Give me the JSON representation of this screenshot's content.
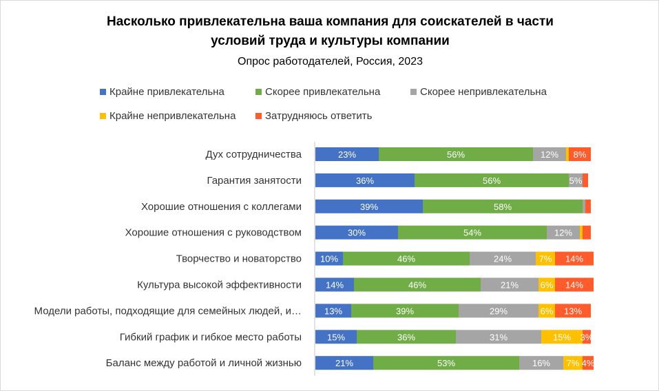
{
  "chart_data": {
    "type": "bar",
    "orientation": "horizontal",
    "stacked": true,
    "title": "Насколько привлекательна ваша компания для соискателей в части условий труда и культуры компании",
    "title_lines": [
      "Насколько привлекательна ваша компания для соискателей в части",
      "условий труда и культуры компании"
    ],
    "subtitle": "Опрос работодателей, Россия, 2023",
    "xlim": [
      0,
      100
    ],
    "grid": false,
    "legend_position": "top",
    "categories": [
      "Дух сотрудничества",
      "Гарантия занятости",
      "Хорошие отношения с коллегами",
      "Хорошие отношения с руководством",
      "Творчество и новаторство",
      "Культура высокой эффективности",
      "Модели работы, подходящие для семейных людей, и…",
      "Гибкий график и гибкое место работы",
      "Баланс между работой и личной жизнью"
    ],
    "series": [
      {
        "name": "Крайне привлекательна",
        "color": "#4472C4",
        "values": [
          23,
          36,
          39,
          30,
          10,
          14,
          13,
          15,
          21
        ],
        "labels": [
          "23%",
          "36%",
          "39%",
          "30%",
          "10%",
          "14%",
          "13%",
          "15%",
          "21%"
        ]
      },
      {
        "name": "Скорее привлекательна",
        "color": "#70AD47",
        "values": [
          56,
          56,
          58,
          54,
          46,
          46,
          39,
          36,
          53
        ],
        "labels": [
          "56%",
          "56%",
          "58%",
          "54%",
          "46%",
          "46%",
          "39%",
          "36%",
          "53%"
        ]
      },
      {
        "name": "Скорее непривлекательна",
        "color": "#A5A5A5",
        "values": [
          12,
          5,
          1,
          12,
          24,
          21,
          29,
          31,
          16
        ],
        "labels": [
          "12%",
          "5%",
          "",
          "12%",
          "24%",
          "21%",
          "29%",
          "31%",
          "16%"
        ]
      },
      {
        "name": "Крайне непривлекательна",
        "color": "#FFC000",
        "values": [
          1,
          0,
          0,
          1,
          7,
          6,
          6,
          15,
          7
        ],
        "labels": [
          "",
          "",
          "",
          "",
          "7%",
          "6%",
          "6%",
          "15%",
          "7%"
        ]
      },
      {
        "name": "Затрудняюсь ответить",
        "color": "#FF5B2B",
        "values": [
          8,
          2,
          2,
          3,
          14,
          14,
          13,
          3,
          4
        ],
        "labels": [
          "8%",
          "",
          "",
          "",
          "14%",
          "14%",
          "13%",
          "3%",
          "4%"
        ]
      }
    ]
  }
}
